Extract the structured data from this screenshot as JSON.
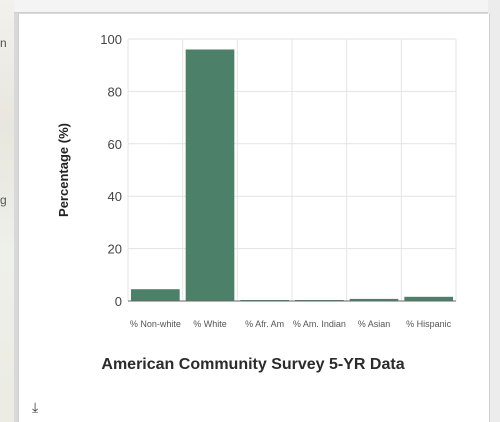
{
  "chart_data": {
    "type": "bar",
    "categories": [
      "% Non-white",
      "% White",
      "% Afr. Am",
      "% Am. Indian",
      "% Asian",
      "% Hispanic"
    ],
    "values": [
      4.5,
      96,
      0.3,
      0.3,
      0.8,
      1.6
    ],
    "ylabel": "Percentage (%)",
    "ylim": [
      0,
      100
    ],
    "yticks": [
      0,
      20,
      40,
      60,
      80,
      100
    ],
    "grid": true,
    "title": "American Community Survey 5-YR Data",
    "bar_color": "#4c8068"
  },
  "map_marks": [
    "n",
    "g"
  ],
  "download_icon": "download-icon"
}
